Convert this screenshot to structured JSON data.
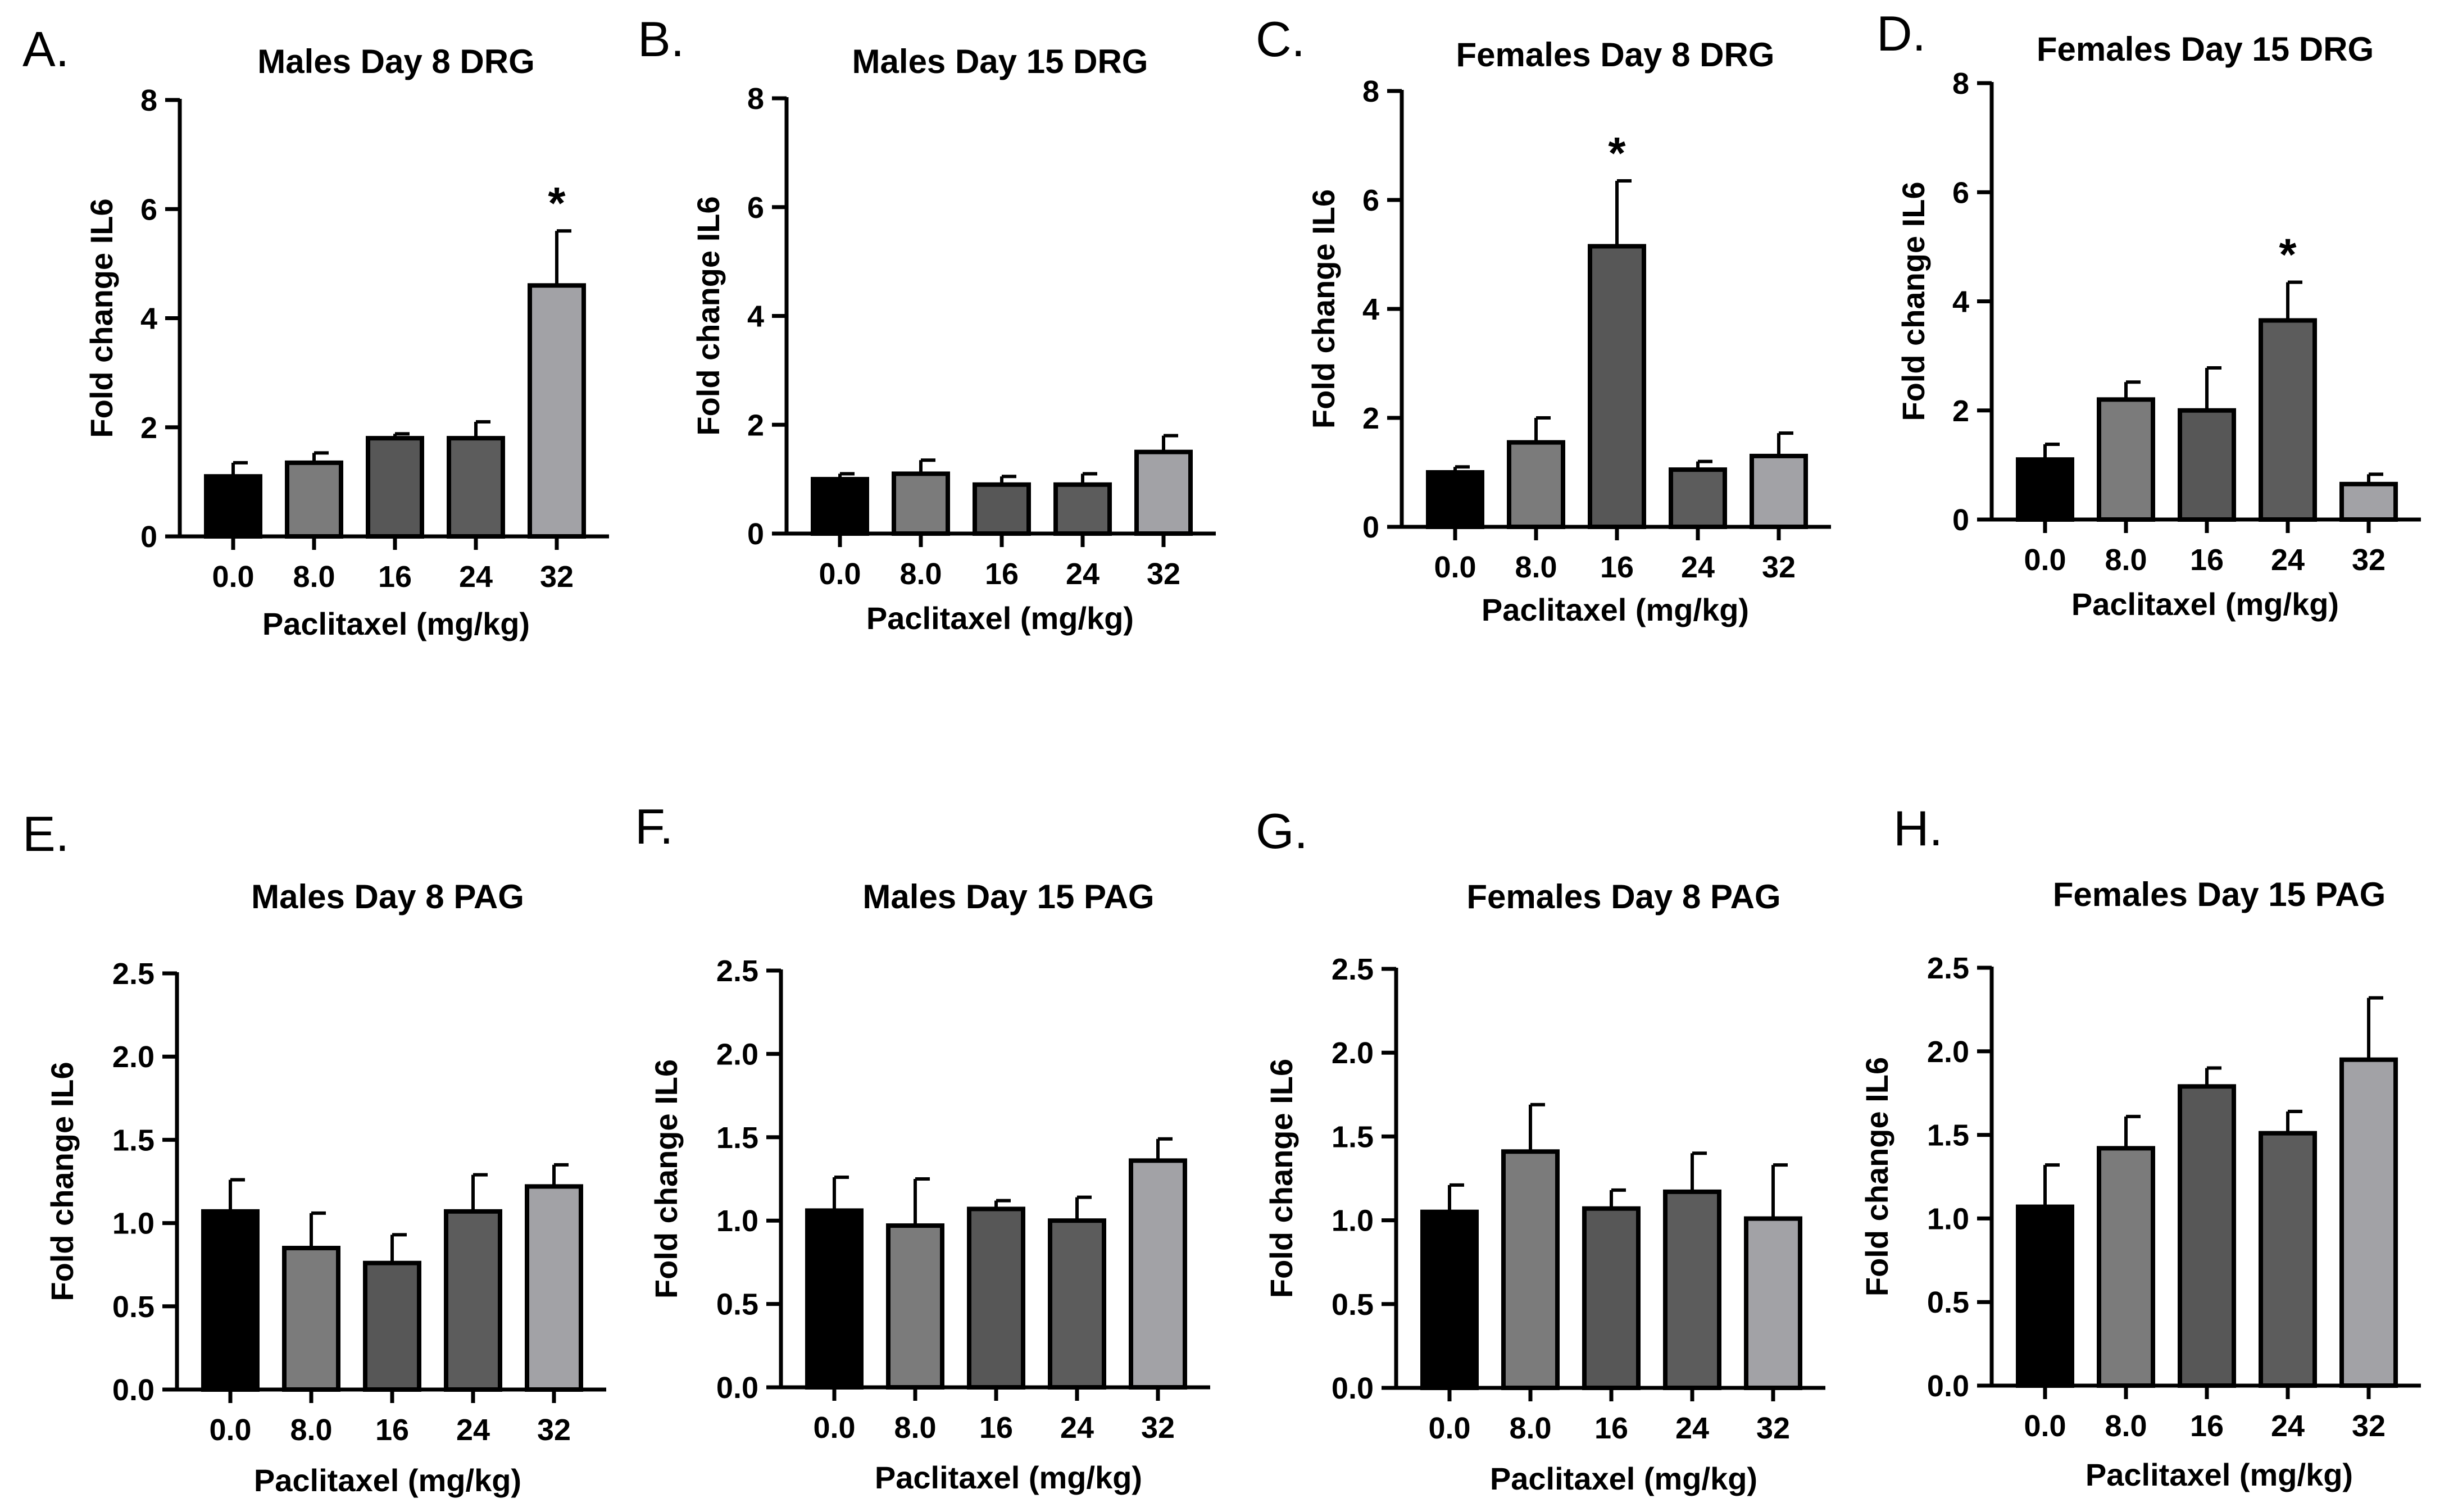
{
  "figure": {
    "colors": {
      "0.0": "#000000",
      "8.0": "#7b7b7b",
      "16": "#575757",
      "24": "#5c5c5c",
      "32": "#a2a2a6"
    }
  },
  "chart_data": [
    {
      "id": "A",
      "panel_label": "A.",
      "title": "Males Day 8 DRG",
      "type": "bar",
      "xlabel": "Paclitaxel (mg/kg)",
      "ylabel": "Fold change IL6",
      "categories": [
        "0.0",
        "8.0",
        "16",
        "24",
        "32"
      ],
      "values": [
        1.1,
        1.35,
        1.8,
        1.8,
        4.6
      ],
      "errors": [
        0.25,
        0.18,
        0.08,
        0.3,
        1.0
      ],
      "significance": [
        "",
        "",
        "",
        "",
        "*"
      ],
      "ylim": [
        0,
        8
      ],
      "yticks": [
        "0",
        "2",
        "4",
        "6",
        "8"
      ],
      "grid": false
    },
    {
      "id": "B",
      "panel_label": "B.",
      "title": "Males Day 15 DRG",
      "type": "bar",
      "xlabel": "Paclitaxel (mg/kg)",
      "ylabel": "Fold change IL6",
      "categories": [
        "0.0",
        "8.0",
        "16",
        "24",
        "32"
      ],
      "values": [
        1.0,
        1.1,
        0.9,
        0.9,
        1.5
      ],
      "errors": [
        0.1,
        0.25,
        0.15,
        0.2,
        0.3
      ],
      "significance": [
        "",
        "",
        "",
        "",
        ""
      ],
      "ylim": [
        0,
        8
      ],
      "yticks": [
        "0",
        "2",
        "4",
        "6",
        "8"
      ],
      "grid": false
    },
    {
      "id": "C",
      "panel_label": "C.",
      "title": "Females Day 8 DRG",
      "type": "bar",
      "xlabel": "Paclitaxel (mg/kg)",
      "ylabel": "Fold change IL6",
      "categories": [
        "0.0",
        "8.0",
        "16",
        "24",
        "32"
      ],
      "values": [
        1.0,
        1.55,
        5.15,
        1.05,
        1.3
      ],
      "errors": [
        0.1,
        0.45,
        1.2,
        0.15,
        0.42
      ],
      "significance": [
        "",
        "",
        "*",
        "",
        ""
      ],
      "ylim": [
        0,
        8
      ],
      "yticks": [
        "0",
        "2",
        "4",
        "6",
        "8"
      ],
      "grid": false
    },
    {
      "id": "D",
      "panel_label": "D.",
      "title": "Females Day 15 DRG",
      "type": "bar",
      "xlabel": "Paclitaxel (mg/kg)",
      "ylabel": "Fold change IL6",
      "categories": [
        "0.0",
        "8.0",
        "16",
        "24",
        "32"
      ],
      "values": [
        1.1,
        2.2,
        2.0,
        3.65,
        0.65
      ],
      "errors": [
        0.28,
        0.32,
        0.78,
        0.7,
        0.18
      ],
      "significance": [
        "",
        "",
        "",
        "*",
        ""
      ],
      "ylim": [
        0,
        8
      ],
      "yticks": [
        "0",
        "2",
        "4",
        "6",
        "8"
      ],
      "grid": false
    },
    {
      "id": "E",
      "panel_label": "E.",
      "title": "Males Day 8 PAG",
      "type": "bar",
      "xlabel": "Paclitaxel (mg/kg)",
      "ylabel": "Fold change IL6",
      "categories": [
        "0.0",
        "8.0",
        "16",
        "24",
        "32"
      ],
      "values": [
        1.07,
        0.85,
        0.76,
        1.07,
        1.22
      ],
      "errors": [
        0.19,
        0.21,
        0.17,
        0.22,
        0.13
      ],
      "significance": [
        "",
        "",
        "",
        "",
        ""
      ],
      "ylim": [
        0,
        2.5
      ],
      "yticks": [
        "0.0",
        "0.5",
        "1.0",
        "1.5",
        "2.0",
        "2.5"
      ],
      "grid": false
    },
    {
      "id": "F",
      "panel_label": "F.",
      "title": "Males Day 15 PAG",
      "type": "bar",
      "xlabel": "Paclitaxel (mg/kg)",
      "ylabel": "Fold change IL6",
      "categories": [
        "0.0",
        "8.0",
        "16",
        "24",
        "32"
      ],
      "values": [
        1.06,
        0.97,
        1.07,
        1.0,
        1.36
      ],
      "errors": [
        0.2,
        0.28,
        0.05,
        0.14,
        0.13
      ],
      "significance": [
        "",
        "",
        "",
        "",
        ""
      ],
      "ylim": [
        0,
        2.5
      ],
      "yticks": [
        "0.0",
        "0.5",
        "1.0",
        "1.5",
        "2.0",
        "2.5"
      ],
      "grid": false
    },
    {
      "id": "G",
      "panel_label": "G.",
      "title": "Females Day 8 PAG",
      "type": "bar",
      "xlabel": "Paclitaxel (mg/kg)",
      "ylabel": "Fold change IL6",
      "categories": [
        "0.0",
        "8.0",
        "16",
        "24",
        "32"
      ],
      "values": [
        1.05,
        1.41,
        1.07,
        1.17,
        1.01
      ],
      "errors": [
        0.16,
        0.28,
        0.11,
        0.23,
        0.32
      ],
      "significance": [
        "",
        "",
        "",
        "",
        ""
      ],
      "ylim": [
        0,
        2.5
      ],
      "yticks": [
        "0.0",
        "0.5",
        "1.0",
        "1.5",
        "2.0",
        "2.5"
      ],
      "grid": false
    },
    {
      "id": "H",
      "panel_label": "H.",
      "title": "Females Day 15 PAG",
      "type": "bar",
      "xlabel": "Paclitaxel (mg/kg)",
      "ylabel": "Fold change IL6",
      "categories": [
        "0.0",
        "8.0",
        "16",
        "24",
        "32"
      ],
      "values": [
        1.07,
        1.42,
        1.79,
        1.51,
        1.95
      ],
      "errors": [
        0.25,
        0.19,
        0.11,
        0.13,
        0.37
      ],
      "significance": [
        "",
        "",
        "",
        "",
        ""
      ],
      "ylim": [
        0,
        2.5
      ],
      "yticks": [
        "0.0",
        "0.5",
        "1.0",
        "1.5",
        "2.0",
        "2.5"
      ],
      "grid": false
    }
  ]
}
